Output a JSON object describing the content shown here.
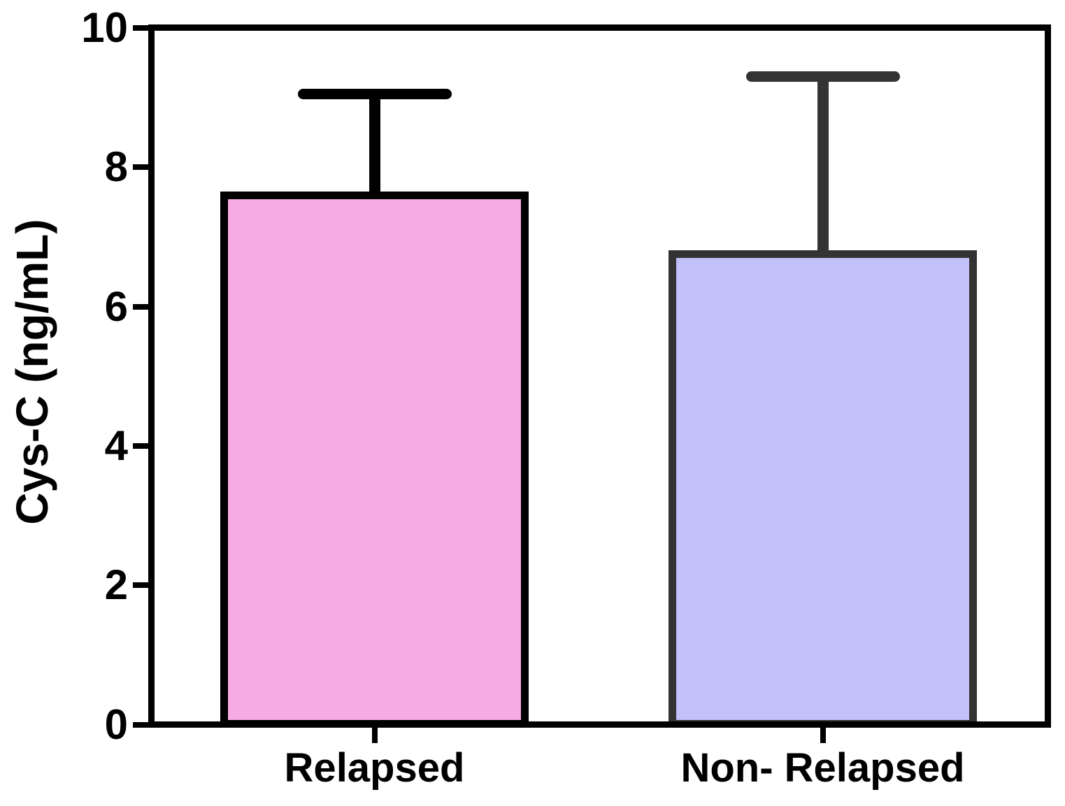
{
  "figure": {
    "background_color": "#FFFFFF",
    "text_color": "#000000"
  },
  "chart_data": {
    "type": "bar",
    "title": "",
    "xlabel": "",
    "ylabel": "Cys-C (ng/mL)",
    "categories": [
      "Relapsed",
      "Non- Relapsed"
    ],
    "series": [
      {
        "name": "Cys-C",
        "values": [
          7.6,
          6.75
        ],
        "error_plus": [
          1.45,
          2.55
        ],
        "error_bar_tops": [
          9.05,
          9.3
        ]
      }
    ],
    "yticks": [
      0,
      2,
      4,
      6,
      8,
      10
    ],
    "ytick_labels": [
      "0",
      "2",
      "4",
      "6",
      "8",
      "10"
    ],
    "ylim": [
      0,
      10
    ],
    "grid": false,
    "legend_position": "none",
    "error_bar_style": "upper-only-with-cap",
    "bar_styles": [
      {
        "category": "Relapsed",
        "fill": "#F6ABE3",
        "stroke": "#000000"
      },
      {
        "category": "Non- Relapsed",
        "fill": "#C1C0F9",
        "stroke": "#333333"
      }
    ],
    "axis_color": "#000000"
  }
}
